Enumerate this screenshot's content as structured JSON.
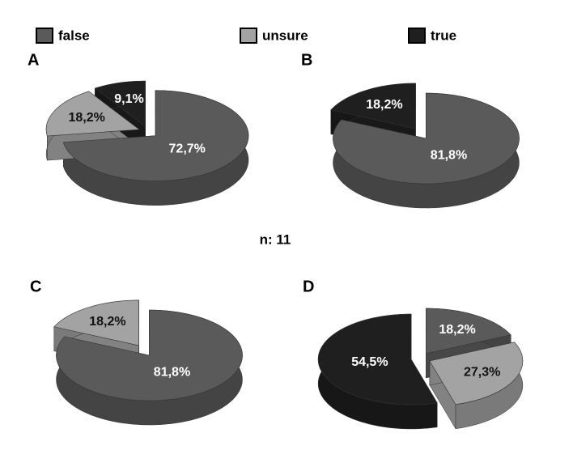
{
  "note": "n: 11",
  "chart_data": [
    {
      "type": "pie",
      "title": "A",
      "categories": [
        "false",
        "unsure",
        "true"
      ],
      "values": [
        72.7,
        18.2,
        9.1
      ],
      "value_labels": [
        "72,7%",
        "18,2%",
        "9,1%"
      ],
      "colors": [
        "#5a5a5a",
        "#a3a3a3",
        "#1f1f1f"
      ]
    },
    {
      "type": "pie",
      "title": "B",
      "categories": [
        "false",
        "true"
      ],
      "values": [
        81.8,
        18.2
      ],
      "value_labels": [
        "81,8%",
        "18,2%"
      ],
      "colors": [
        "#5a5a5a",
        "#1f1f1f"
      ]
    },
    {
      "type": "pie",
      "title": "C",
      "categories": [
        "false",
        "unsure"
      ],
      "values": [
        81.8,
        18.2
      ],
      "value_labels": [
        "81,8%",
        "18,2%"
      ],
      "colors": [
        "#5a5a5a",
        "#a3a3a3"
      ]
    },
    {
      "type": "pie",
      "title": "D",
      "categories": [
        "false",
        "unsure",
        "true"
      ],
      "values": [
        18.2,
        27.3,
        54.5
      ],
      "value_labels": [
        "18,2%",
        "27,3%",
        "54,5%"
      ],
      "colors": [
        "#5a5a5a",
        "#a3a3a3",
        "#1f1f1f"
      ]
    }
  ]
}
